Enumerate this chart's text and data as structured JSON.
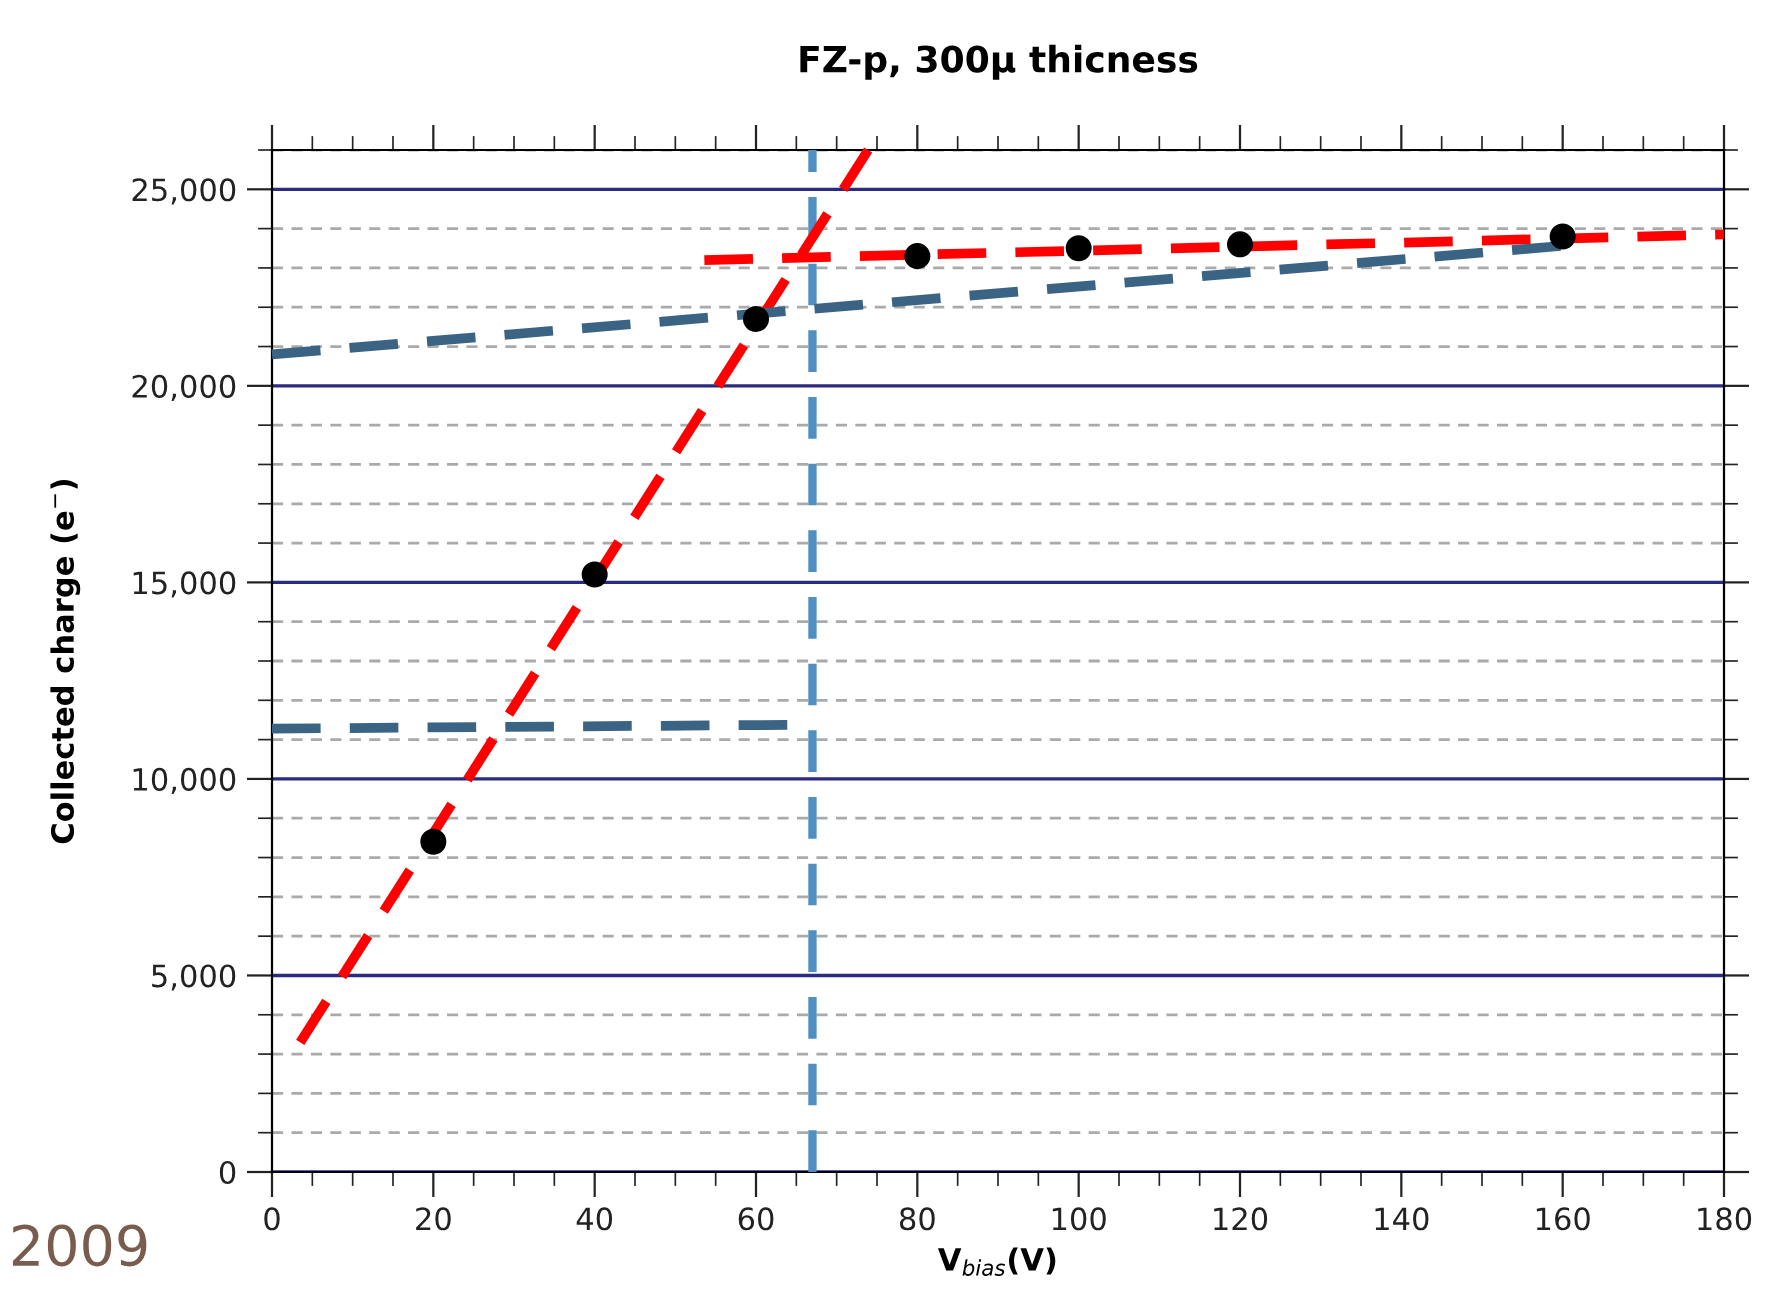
{
  "chart_data": {
    "type": "scatter",
    "title": "FZ-p, 300µ thicness",
    "xlabel": "V$_{bias}$(V)",
    "ylabel": "Collected charge (e$^{−}$)",
    "series": [
      {
        "color": "#000000",
        "x": [
          20,
          40,
          60,
          80,
          100,
          120,
          160
        ],
        "values": [
          8400,
          15200,
          21700,
          23300,
          23500,
          23600,
          23800
        ],
        "marker": "circle"
      },
      {
        "type": "line",
        "color": "#ff0000",
        "x": [
          3.5,
          73.9
        ],
        "values": [
          3300,
          26000
        ],
        "line_style": "dashed"
      },
      {
        "type": "line",
        "color": "#ff0000",
        "x": [
          53.6,
          180
        ],
        "values": [
          23200,
          23850
        ],
        "line_style": "dashed"
      },
      {
        "type": "line",
        "color": "#3b6384",
        "x": [
          0,
          161
        ],
        "values": [
          20800,
          23580
        ],
        "line_style": "dashed"
      },
      {
        "type": "line",
        "color": "#3b6384",
        "x": [
          0,
          66.7
        ],
        "values": [
          11280,
          11380
        ],
        "line_style": "dashed"
      }
    ],
    "ref_lines": [
      {
        "axis": "x",
        "value": 67,
        "color": "#4f8fc4",
        "line_style": "dashed"
      }
    ],
    "xlim": [
      0,
      180
    ],
    "xticks": [
      0,
      20,
      40,
      60,
      80,
      100,
      120,
      140,
      160,
      180
    ],
    "ylim": [
      0,
      26000
    ],
    "yticks": [
      {
        "value": 0,
        "label": "0"
      },
      {
        "value": 5000,
        "label": "5,000"
      },
      {
        "value": 10000,
        "label": "10,000"
      },
      {
        "value": 15000,
        "label": "15,000"
      },
      {
        "value": 20000,
        "label": "20,000"
      },
      {
        "value": 25000,
        "label": "25,000"
      }
    ],
    "grid": "y",
    "annotations": [
      "2009"
    ]
  }
}
